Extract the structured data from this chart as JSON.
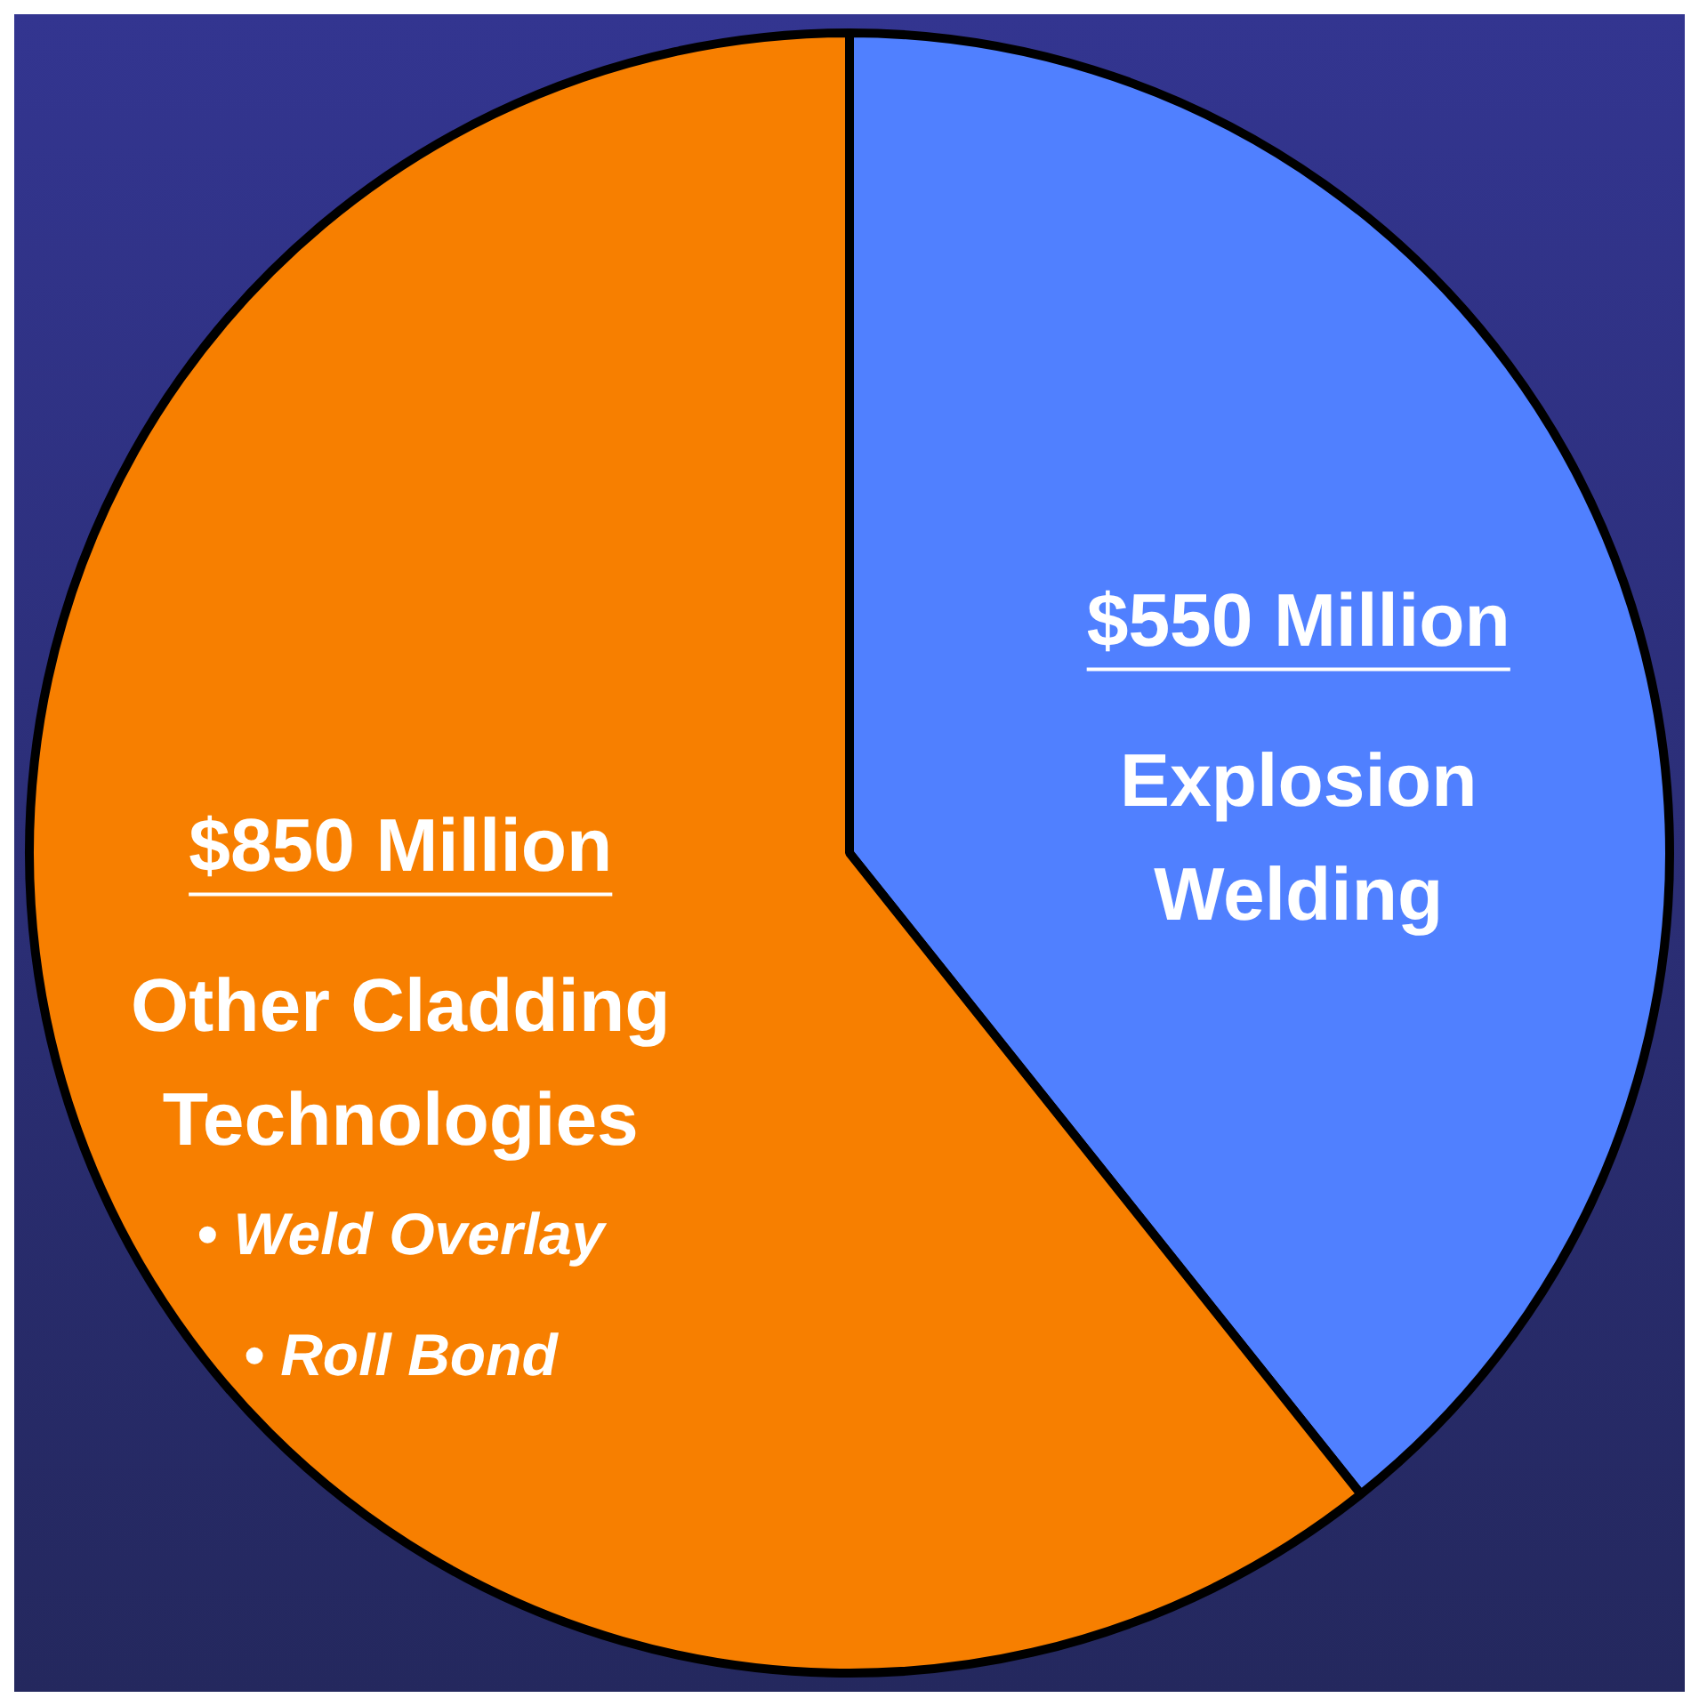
{
  "chart_data": {
    "type": "pie",
    "categories": [
      "Explosion Welding",
      "Other Cladding Technologies"
    ],
    "values": [
      550,
      850
    ],
    "value_labels": [
      "$550 Million",
      "$850 Million"
    ],
    "colors": [
      "#5080ff",
      "#f77f00"
    ],
    "annotations": [
      "• Weld Overlay",
      "• Roll Bond"
    ],
    "legend": false
  }
}
